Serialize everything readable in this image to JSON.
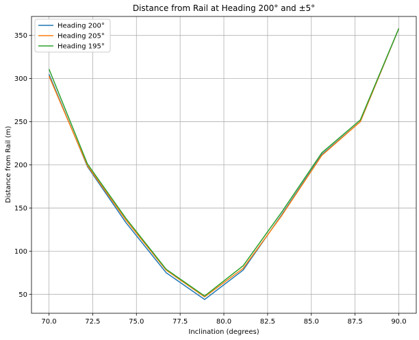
{
  "chart_data": {
    "type": "line",
    "title": "Distance from Rail at Heading 200° and ±5°",
    "xlabel": "Inclination (degrees)",
    "ylabel": "Distance from Rail (m)",
    "xlim": [
      69.0,
      91.0
    ],
    "ylim": [
      28,
      372
    ],
    "grid": true,
    "legend_position": "top-left",
    "x": [
      70.0,
      72.2,
      74.4,
      76.7,
      78.9,
      81.1,
      83.3,
      85.6,
      87.8,
      90.0
    ],
    "x_ticks": [
      70.0,
      72.5,
      75.0,
      77.5,
      80.0,
      82.5,
      85.0,
      87.5,
      90.0
    ],
    "x_tick_labels": [
      "70.0",
      "72.5",
      "75.0",
      "77.5",
      "80.0",
      "82.5",
      "85.0",
      "87.5",
      "90.0"
    ],
    "y_ticks": [
      50,
      100,
      150,
      200,
      250,
      300,
      350
    ],
    "y_tick_labels": [
      "50",
      "100",
      "150",
      "200",
      "250",
      "300",
      "350"
    ],
    "series": [
      {
        "name": "Heading 200°",
        "color": "#1f77b4",
        "values": [
          305,
          198,
          133,
          75,
          44,
          78,
          142,
          212,
          250,
          358
        ]
      },
      {
        "name": "Heading 205°",
        "color": "#ff7f0e",
        "values": [
          303,
          199,
          136,
          78,
          47,
          80,
          141,
          211,
          250,
          358
        ]
      },
      {
        "name": "Heading 195°",
        "color": "#2ca02c",
        "values": [
          311,
          201,
          138,
          79,
          48,
          83,
          145,
          214,
          252,
          358
        ]
      }
    ]
  }
}
